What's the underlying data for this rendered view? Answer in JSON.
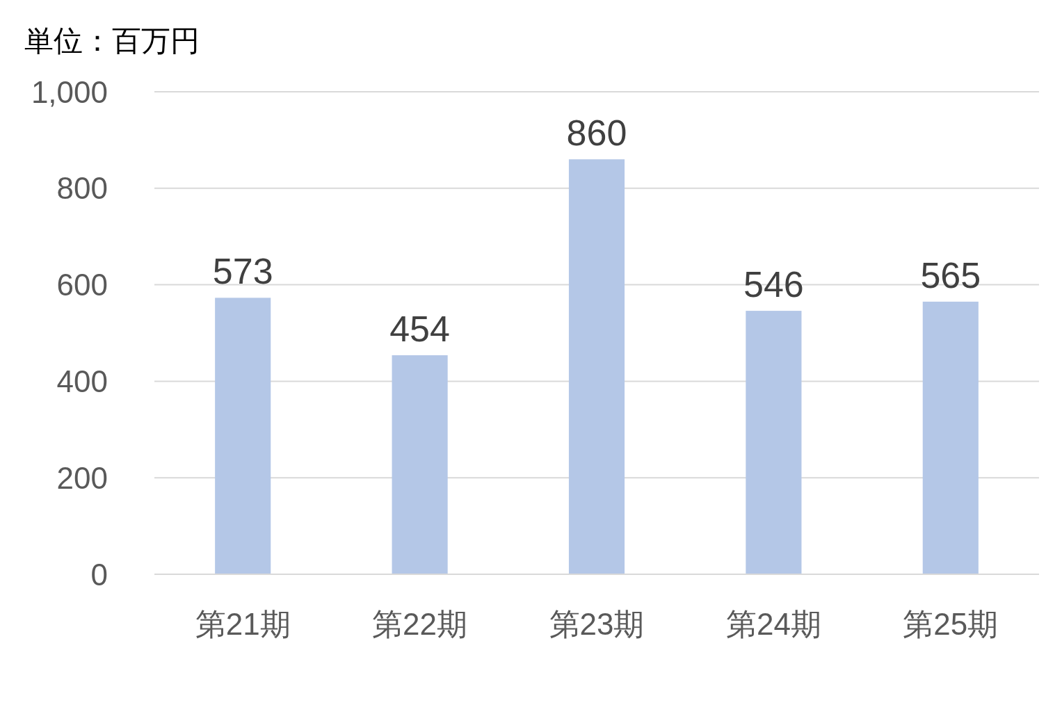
{
  "chart_data": {
    "type": "bar",
    "ylabel": "単位：百万円",
    "categories": [
      "第21期",
      "第22期",
      "第23期",
      "第24期",
      "第25期"
    ],
    "values": [
      573,
      454,
      860,
      546,
      565
    ],
    "color": "#b4c7e7",
    "ylim": [
      0,
      1000
    ],
    "yticks": [
      0,
      200,
      400,
      600,
      800,
      {
        "value": 1000,
        "label": "1,000"
      }
    ],
    "grid": "y",
    "data_labels": true
  }
}
